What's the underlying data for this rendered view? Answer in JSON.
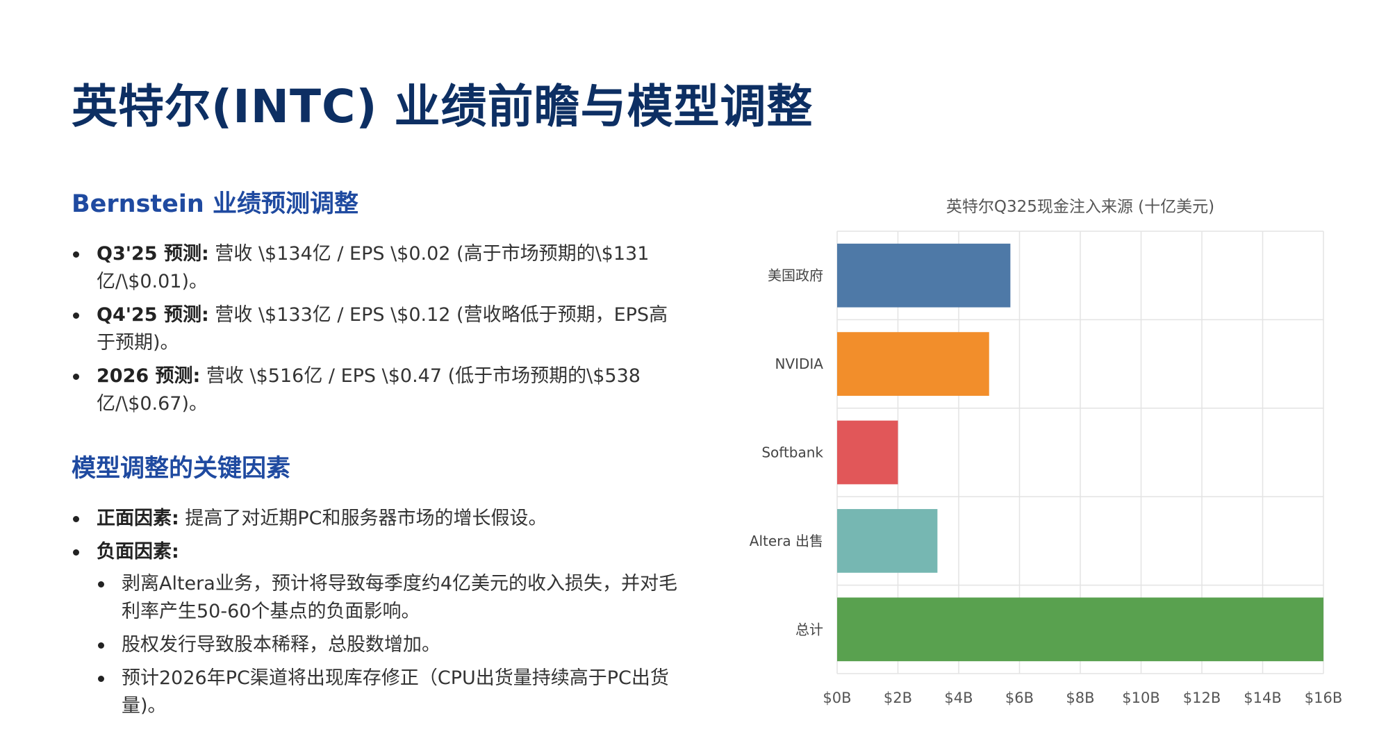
{
  "title": "英特尔(INTC) 业绩前瞻与模型调整",
  "sections": [
    {
      "heading": "Bernstein 业绩预测调整",
      "bullets": [
        {
          "label": "Q3'25 预测:",
          "text": " 营收 \\$134亿 / EPS \\$0.02 (高于市场预期的\\$131亿/\\$0.01)。"
        },
        {
          "label": "Q4'25 预测:",
          "text": " 营收 \\$133亿 / EPS \\$0.12 (营收略低于预期，EPS高于预期)。"
        },
        {
          "label": "2026 预测:",
          "text": " 营收 \\$516亿 / EPS \\$0.47 (低于市场预期的\\$538亿/\\$0.67)。"
        }
      ]
    },
    {
      "heading": "模型调整的关键因素",
      "bullets": [
        {
          "label": "正面因素:",
          "text": " 提高了对近期PC和服务器市场的增长假设。"
        },
        {
          "label": "负面因素:",
          "text": ""
        }
      ],
      "sub_bullets": [
        "剥离Altera业务，预计将导致每季度约4亿美元的收入损失，并对毛利率产生50-60个基点的负面影响。",
        "股权发行导致股本稀释，总股数增加。",
        "预计2026年PC渠道将出现库存修正（CPU出货量持续高于PC出货量)。"
      ]
    }
  ],
  "chart_data": {
    "type": "bar",
    "orientation": "horizontal",
    "title": "英特尔Q325现金注入来源 (十亿美元)",
    "categories": [
      "美国政府",
      "NVIDIA",
      "Softbank",
      "Altera 出售",
      "总计"
    ],
    "values": [
      5.7,
      5.0,
      2.0,
      3.3,
      16.0
    ],
    "colors": [
      "#4e79a7",
      "#f28e2b",
      "#e15759",
      "#76b7b2",
      "#59a14f"
    ],
    "xlim": [
      0,
      16
    ],
    "xticks": [
      "$0B",
      "$2B",
      "$4B",
      "$6B",
      "$8B",
      "$10B",
      "$12B",
      "$14B",
      "$16B"
    ],
    "xlabel": "",
    "ylabel": "",
    "grid": true,
    "legend": "none"
  }
}
